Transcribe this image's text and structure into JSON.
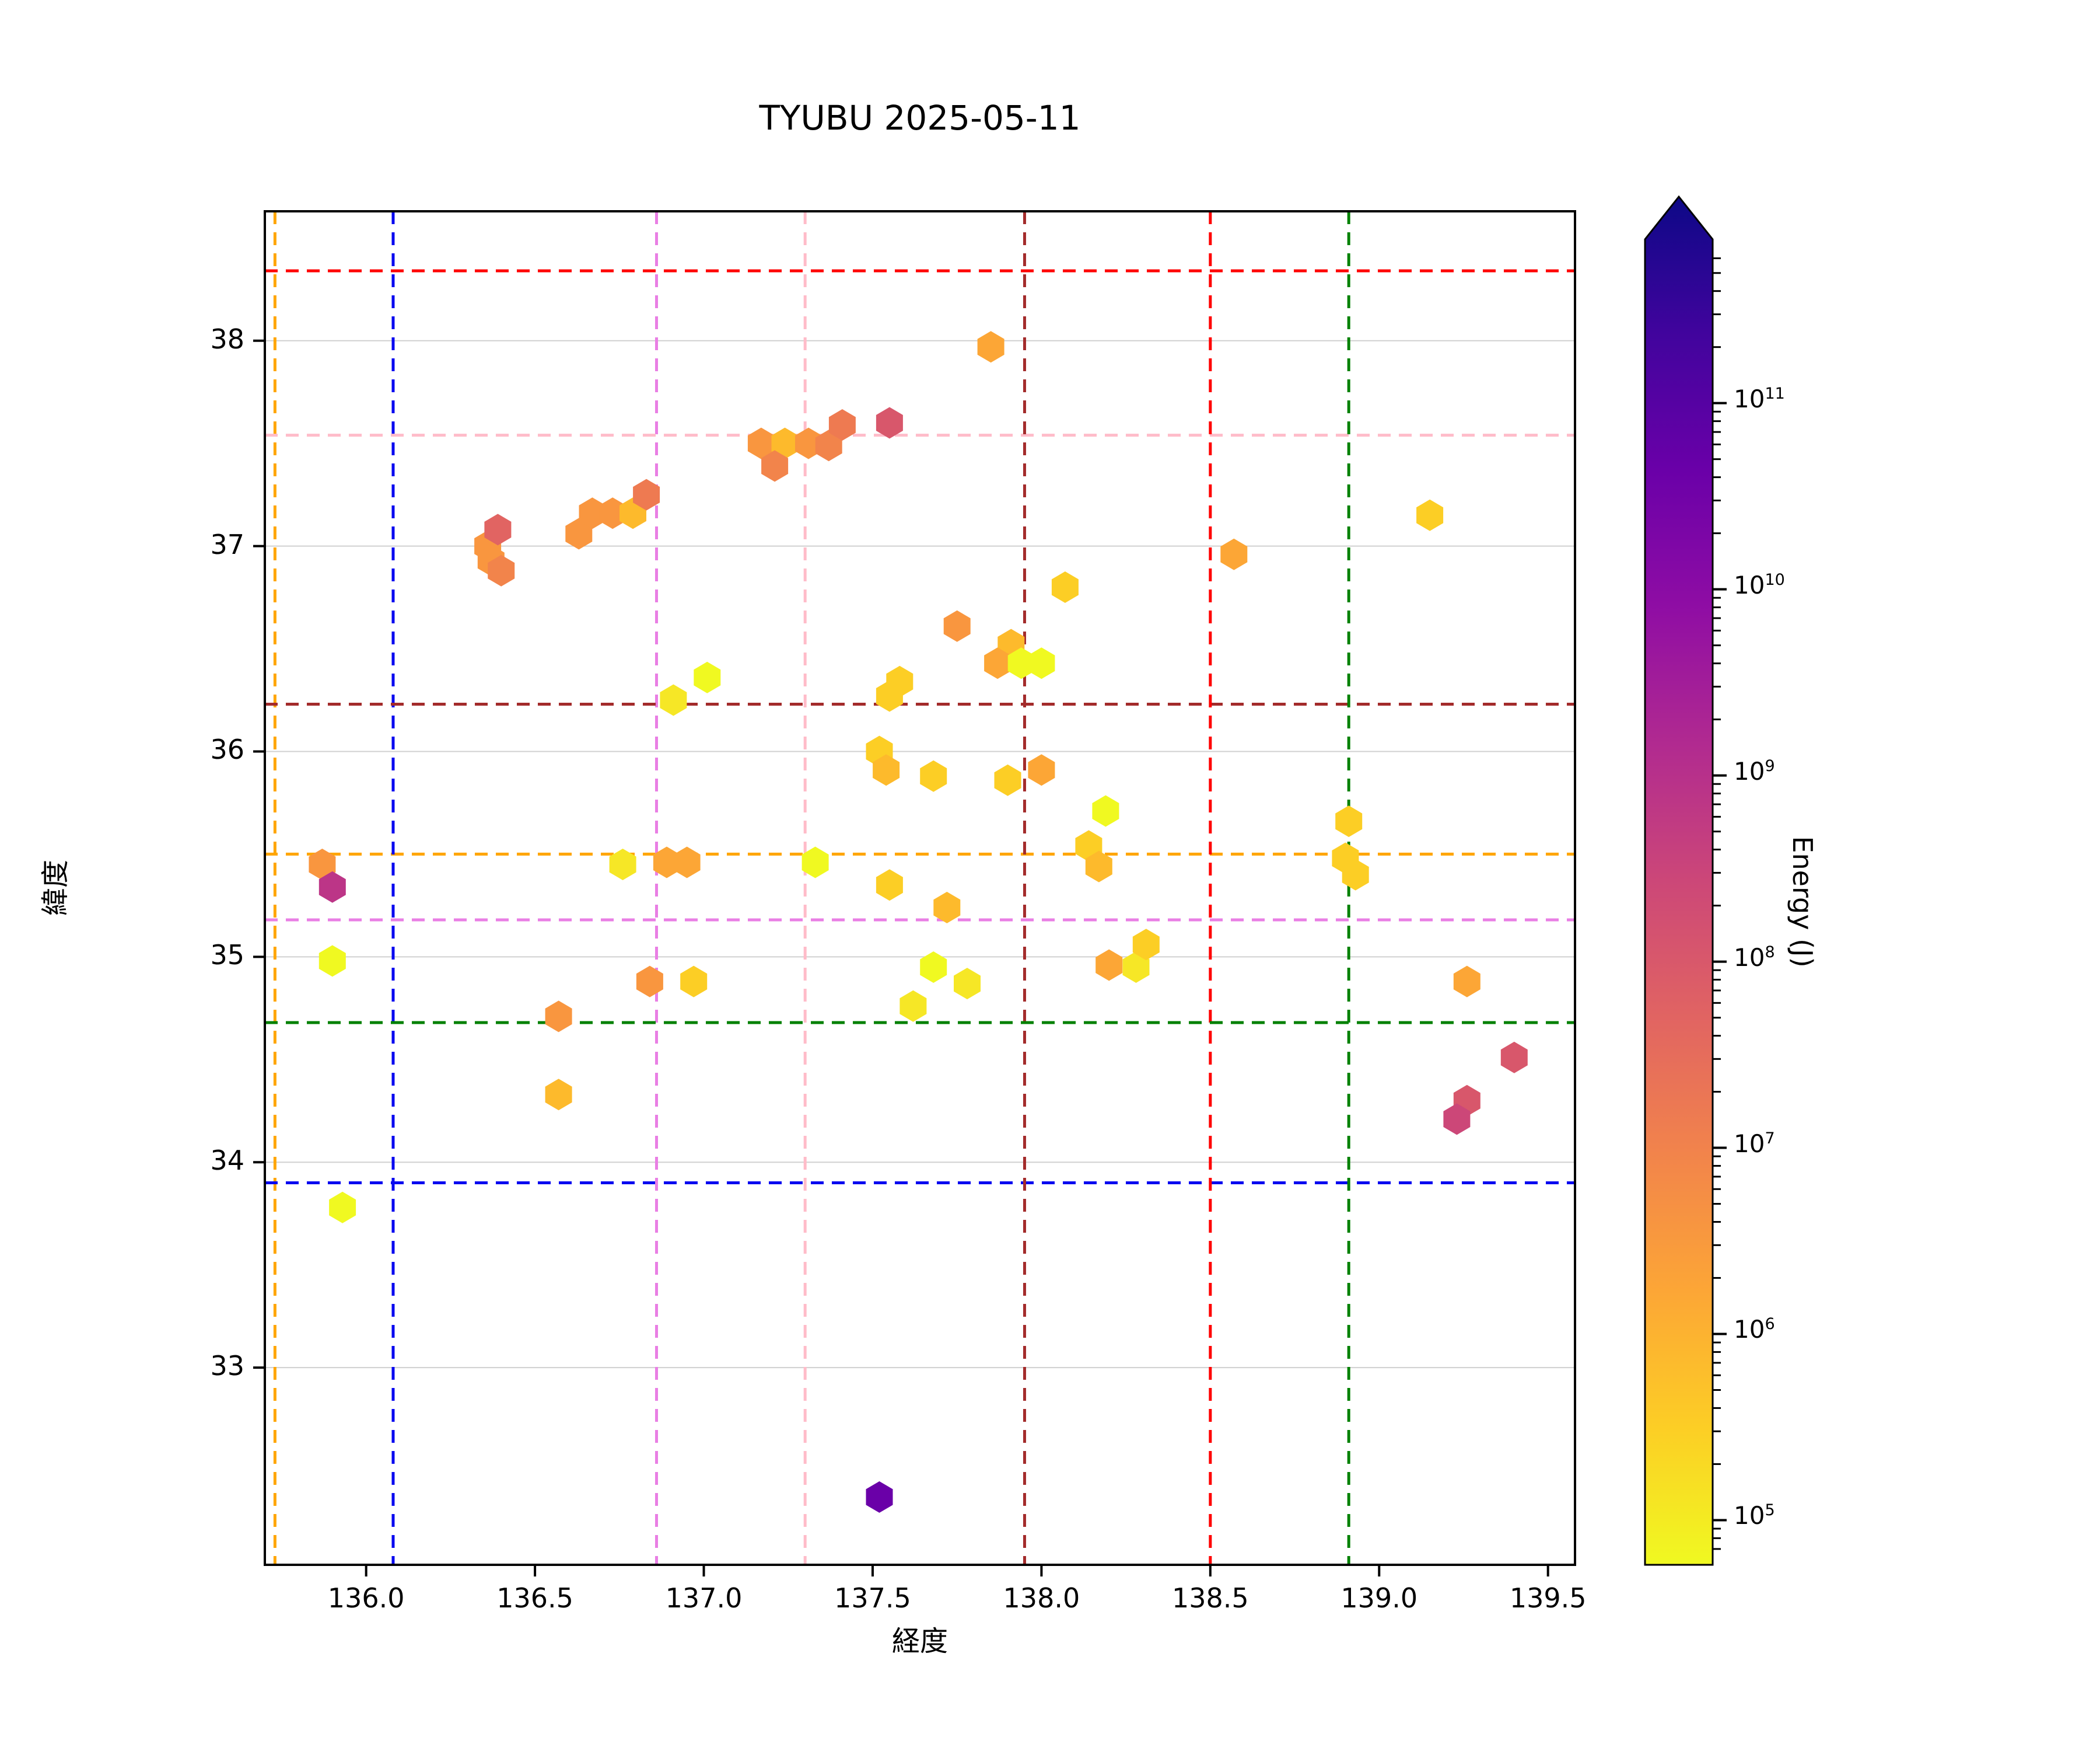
{
  "title": "TYUBU 2025-05-11",
  "axes": {
    "xlabel": "経度",
    "ylabel": "緯度",
    "xlim": [
      135.7,
      139.58
    ],
    "ylim": [
      32.04,
      38.63
    ],
    "xticks": [
      136.0,
      136.5,
      137.0,
      137.5,
      138.0,
      138.5,
      139.0,
      139.5
    ],
    "xtick_labels": [
      "136.0",
      "136.5",
      "137.0",
      "137.5",
      "138.0",
      "138.5",
      "139.0",
      "139.5"
    ],
    "yticks": [
      33,
      34,
      35,
      36,
      37,
      38
    ],
    "ytick_labels": [
      "33",
      "34",
      "35",
      "36",
      "37",
      "38"
    ],
    "grid": {
      "horizontal_at_yticks": true,
      "vertical": false,
      "color": "#d0d0d0"
    }
  },
  "boundary_lines": {
    "style": "dashed",
    "lines": [
      {
        "color_name": "orange",
        "hex": "#FFA500",
        "vertical_lon": 135.73,
        "horizontal_lat": 35.5
      },
      {
        "color_name": "blue",
        "hex": "#0808F0",
        "vertical_lon": 136.08,
        "horizontal_lat": 33.9
      },
      {
        "color_name": "violet",
        "hex": "#E97FE4",
        "vertical_lon": 136.86,
        "horizontal_lat": 35.18
      },
      {
        "color_name": "pink",
        "hex": "#FFBCC9",
        "vertical_lon": 137.3,
        "horizontal_lat": 37.54
      },
      {
        "color_name": "darkred",
        "hex": "#A32B2B",
        "vertical_lon": 137.95,
        "horizontal_lat": 36.23
      },
      {
        "color_name": "red",
        "hex": "#FF0000",
        "vertical_lon": 138.5,
        "horizontal_lat": 38.34
      },
      {
        "color_name": "green",
        "hex": "#008000",
        "vertical_lon": 138.91,
        "horizontal_lat": 34.68
      }
    ]
  },
  "colorbar": {
    "label": "Energy (J)",
    "tick_exponents": [
      5,
      6,
      7,
      8,
      9,
      10,
      11
    ],
    "tick_labels": [
      "10^5",
      "10^6",
      "10^7",
      "10^8",
      "10^9",
      "10^10",
      "10^11"
    ],
    "scale": "log",
    "extend": "max-arrow-top",
    "colormap": "plasma reversed (yellow = low energy, dark blue = high energy)",
    "gradient_bottom_to_top": [
      "#f0f921",
      "#fcce25",
      "#fca636",
      "#f2844b",
      "#e16462",
      "#cc4778",
      "#b12a90",
      "#8f0da4",
      "#6a00a8",
      "#41049d",
      "#0d0887"
    ]
  },
  "chart_data": {
    "type": "scatter",
    "marker": "hexagon",
    "x_field": "lon",
    "y_field": "lat",
    "color_encodes": "Energy (J), log scale per colorbar",
    "palette": {
      "lemon": {
        "hex": "#f0f921",
        "energy_j": 80000
      },
      "yellow": {
        "hex": "#f6e726",
        "energy_j": 150000
      },
      "gold": {
        "hex": "#fcce25",
        "energy_j": 300000
      },
      "amber": {
        "hex": "#fdba2c",
        "energy_j": 600000
      },
      "o1": {
        "hex": "#fca636",
        "energy_j": 1000000
      },
      "o2": {
        "hex": "#f9963f",
        "energy_j": 2500000
      },
      "o3": {
        "hex": "#f2844b",
        "energy_j": 5000000
      },
      "so": {
        "hex": "#ee7a51",
        "energy_j": 8000000
      },
      "sal": {
        "hex": "#e16462",
        "energy_j": 15000000
      },
      "ir": {
        "hex": "#d8576b",
        "energy_j": 30000000
      },
      "pr": {
        "hex": "#cc4778",
        "energy_j": 60000000
      },
      "mg": {
        "hex": "#bc3587",
        "energy_j": 150000000
      },
      "pu": {
        "hex": "#6a00a8",
        "energy_j": 10000000000
      }
    },
    "points": [
      {
        "lon": 137.17,
        "lat": 37.5,
        "c": "o2"
      },
      {
        "lon": 137.24,
        "lat": 37.5,
        "c": "amber"
      },
      {
        "lon": 137.31,
        "lat": 37.5,
        "c": "o2"
      },
      {
        "lon": 137.21,
        "lat": 37.39,
        "c": "o3"
      },
      {
        "lon": 137.37,
        "lat": 37.49,
        "c": "o3"
      },
      {
        "lon": 137.41,
        "lat": 37.59,
        "c": "so"
      },
      {
        "lon": 137.55,
        "lat": 37.6,
        "c": "ir"
      },
      {
        "lon": 137.85,
        "lat": 37.97,
        "c": "o1"
      },
      {
        "lon": 136.36,
        "lat": 37.0,
        "c": "o2"
      },
      {
        "lon": 136.37,
        "lat": 36.93,
        "c": "o2"
      },
      {
        "lon": 136.4,
        "lat": 36.88,
        "c": "o3"
      },
      {
        "lon": 136.39,
        "lat": 37.08,
        "c": "sal"
      },
      {
        "lon": 136.63,
        "lat": 37.06,
        "c": "o2"
      },
      {
        "lon": 136.67,
        "lat": 37.16,
        "c": "o2"
      },
      {
        "lon": 136.73,
        "lat": 37.16,
        "c": "o2"
      },
      {
        "lon": 136.79,
        "lat": 37.16,
        "c": "amber"
      },
      {
        "lon": 136.83,
        "lat": 37.25,
        "c": "so"
      },
      {
        "lon": 138.07,
        "lat": 36.8,
        "c": "gold"
      },
      {
        "lon": 137.75,
        "lat": 36.61,
        "c": "o2"
      },
      {
        "lon": 137.91,
        "lat": 36.52,
        "c": "amber"
      },
      {
        "lon": 137.87,
        "lat": 36.43,
        "c": "o1"
      },
      {
        "lon": 137.94,
        "lat": 36.43,
        "c": "lemon"
      },
      {
        "lon": 138.0,
        "lat": 36.43,
        "c": "lemon"
      },
      {
        "lon": 137.58,
        "lat": 36.34,
        "c": "gold"
      },
      {
        "lon": 137.55,
        "lat": 36.27,
        "c": "gold"
      },
      {
        "lon": 137.01,
        "lat": 36.36,
        "c": "lemon"
      },
      {
        "lon": 136.91,
        "lat": 36.25,
        "c": "yellow"
      },
      {
        "lon": 137.52,
        "lat": 36.0,
        "c": "gold"
      },
      {
        "lon": 137.54,
        "lat": 35.91,
        "c": "amber"
      },
      {
        "lon": 137.68,
        "lat": 35.88,
        "c": "gold"
      },
      {
        "lon": 137.9,
        "lat": 35.86,
        "c": "gold"
      },
      {
        "lon": 138.0,
        "lat": 35.91,
        "c": "o1"
      },
      {
        "lon": 138.19,
        "lat": 35.71,
        "c": "lemon"
      },
      {
        "lon": 138.14,
        "lat": 35.54,
        "c": "gold"
      },
      {
        "lon": 138.17,
        "lat": 35.44,
        "c": "amber"
      },
      {
        "lon": 137.33,
        "lat": 35.46,
        "c": "lemon"
      },
      {
        "lon": 137.55,
        "lat": 35.35,
        "c": "gold"
      },
      {
        "lon": 137.72,
        "lat": 35.24,
        "c": "amber"
      },
      {
        "lon": 137.68,
        "lat": 34.95,
        "c": "lemon"
      },
      {
        "lon": 137.78,
        "lat": 34.87,
        "c": "yellow"
      },
      {
        "lon": 137.62,
        "lat": 34.76,
        "c": "yellow"
      },
      {
        "lon": 138.2,
        "lat": 34.96,
        "c": "o1"
      },
      {
        "lon": 138.28,
        "lat": 34.95,
        "c": "yellow"
      },
      {
        "lon": 138.31,
        "lat": 35.06,
        "c": "gold"
      },
      {
        "lon": 135.87,
        "lat": 35.45,
        "c": "o2"
      },
      {
        "lon": 135.9,
        "lat": 35.34,
        "c": "mg"
      },
      {
        "lon": 135.9,
        "lat": 34.98,
        "c": "lemon"
      },
      {
        "lon": 135.93,
        "lat": 33.78,
        "c": "lemon"
      },
      {
        "lon": 136.76,
        "lat": 35.45,
        "c": "yellow"
      },
      {
        "lon": 136.89,
        "lat": 35.46,
        "c": "o1"
      },
      {
        "lon": 136.95,
        "lat": 35.46,
        "c": "o1"
      },
      {
        "lon": 136.84,
        "lat": 34.88,
        "c": "o2"
      },
      {
        "lon": 136.97,
        "lat": 34.88,
        "c": "gold"
      },
      {
        "lon": 136.57,
        "lat": 34.71,
        "c": "o2"
      },
      {
        "lon": 136.57,
        "lat": 34.33,
        "c": "amber"
      },
      {
        "lon": 138.57,
        "lat": 36.96,
        "c": "o1"
      },
      {
        "lon": 139.15,
        "lat": 37.15,
        "c": "gold"
      },
      {
        "lon": 138.91,
        "lat": 35.66,
        "c": "gold"
      },
      {
        "lon": 138.9,
        "lat": 35.48,
        "c": "gold"
      },
      {
        "lon": 138.93,
        "lat": 35.4,
        "c": "gold"
      },
      {
        "lon": 139.26,
        "lat": 34.88,
        "c": "o1"
      },
      {
        "lon": 139.4,
        "lat": 34.51,
        "c": "ir"
      },
      {
        "lon": 139.26,
        "lat": 34.3,
        "c": "ir"
      },
      {
        "lon": 139.23,
        "lat": 34.21,
        "c": "pr"
      },
      {
        "lon": 137.52,
        "lat": 32.37,
        "c": "pu"
      }
    ]
  }
}
